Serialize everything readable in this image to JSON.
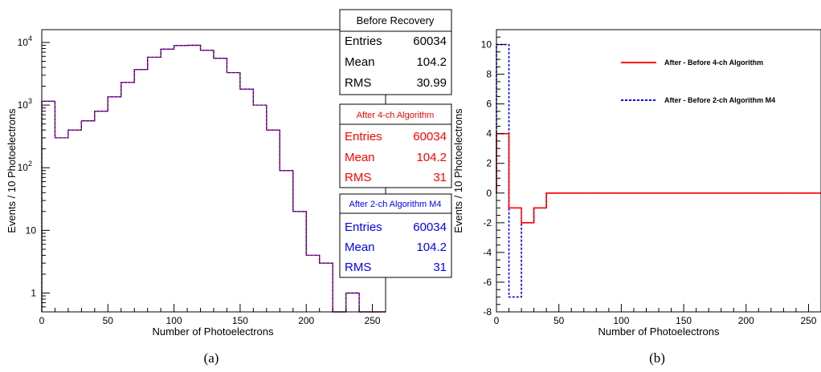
{
  "captions": {
    "a": "(a)",
    "b": "(b)"
  },
  "colors": {
    "before": "#000000",
    "four_ch": "#ff0000",
    "two_ch": "#0000ff"
  },
  "chart_data": [
    {
      "id": "a",
      "type": "histogram",
      "xlabel": "Number of Photoelectrons",
      "ylabel": "Events / 10 Photoelectrons",
      "xlim": [
        0,
        260
      ],
      "ylim": [
        0.5,
        16000
      ],
      "log_y": true,
      "grid": false,
      "x_ticks": [
        0,
        50,
        100,
        150,
        200,
        250
      ],
      "y_ticks": [
        {
          "value": 1,
          "label": "1"
        },
        {
          "value": 10,
          "label": "10"
        },
        {
          "value": 100,
          "label": "10",
          "exp": "2"
        },
        {
          "value": 1000,
          "label": "10",
          "exp": "3"
        },
        {
          "value": 10000,
          "label": "10",
          "exp": "4"
        }
      ],
      "bin_width": 10,
      "bin_edges_start": 0,
      "series": [
        {
          "key": "before",
          "values": [
            1150,
            300,
            400,
            560,
            800,
            1350,
            2300,
            3700,
            5800,
            7800,
            8900,
            9000,
            7500,
            5600,
            3300,
            1800,
            1000,
            400,
            90,
            20,
            4,
            3,
            0,
            1,
            0,
            0
          ]
        },
        {
          "key": "four_ch",
          "values": [
            1150,
            300,
            400,
            560,
            800,
            1350,
            2300,
            3700,
            5800,
            7800,
            8900,
            9000,
            7500,
            5600,
            3300,
            1800,
            1000,
            400,
            90,
            20,
            4,
            3,
            0,
            1,
            0,
            0
          ]
        },
        {
          "key": "two_ch",
          "values": [
            1150,
            300,
            400,
            560,
            800,
            1350,
            2300,
            3700,
            5800,
            7800,
            8900,
            9000,
            7500,
            5600,
            3300,
            1800,
            1000,
            400,
            90,
            20,
            4,
            3,
            0,
            1,
            0,
            0
          ]
        }
      ],
      "stat_boxes": [
        {
          "title": "Before Recovery",
          "entries_label": "Entries",
          "entries": "60034",
          "mean_label": "Mean",
          "mean": "104.2",
          "rms_label": "RMS",
          "rms": "30.99"
        },
        {
          "title": "After 4-ch Algorithm",
          "entries_label": "Entries",
          "entries": "60034",
          "mean_label": "Mean",
          "mean": "104.2",
          "rms_label": "RMS",
          "rms": "31"
        },
        {
          "title": "After 2-ch Algorithm M4",
          "entries_label": "Entries",
          "entries": "60034",
          "mean_label": "Mean",
          "mean": "104.2",
          "rms_label": "RMS",
          "rms": "31"
        }
      ]
    },
    {
      "id": "b",
      "type": "histogram",
      "xlabel": "Number of Photoelectrons",
      "ylabel": "Events / 10 Photoelectrons",
      "xlim": [
        0,
        260
      ],
      "ylim": [
        -8,
        11
      ],
      "log_y": false,
      "grid": false,
      "x_ticks": [
        0,
        50,
        100,
        150,
        200,
        250
      ],
      "y_ticks": [
        -8,
        -6,
        -4,
        -2,
        0,
        2,
        4,
        6,
        8,
        10
      ],
      "bin_width": 10,
      "bin_edges_start": 0,
      "series": [
        {
          "key": "four_ch",
          "name": "After - Before 4-ch Algorithm",
          "style": "solid",
          "values": [
            4,
            -1,
            -2,
            -1,
            0,
            0,
            0,
            0,
            0,
            0,
            0,
            0,
            0,
            0,
            0,
            0,
            0,
            0,
            0,
            0,
            0,
            0,
            0,
            0,
            0,
            0
          ]
        },
        {
          "key": "two_ch",
          "name": "After - Before 2-ch Algorithm M4",
          "style": "dashed",
          "values": [
            10,
            -7,
            -2,
            -1,
            0,
            0,
            0,
            0,
            0,
            0,
            0,
            0,
            0,
            0,
            0,
            0,
            0,
            0,
            0,
            0,
            0,
            0,
            0,
            0,
            0,
            0
          ]
        }
      ],
      "legend_placement": "top-right"
    }
  ]
}
